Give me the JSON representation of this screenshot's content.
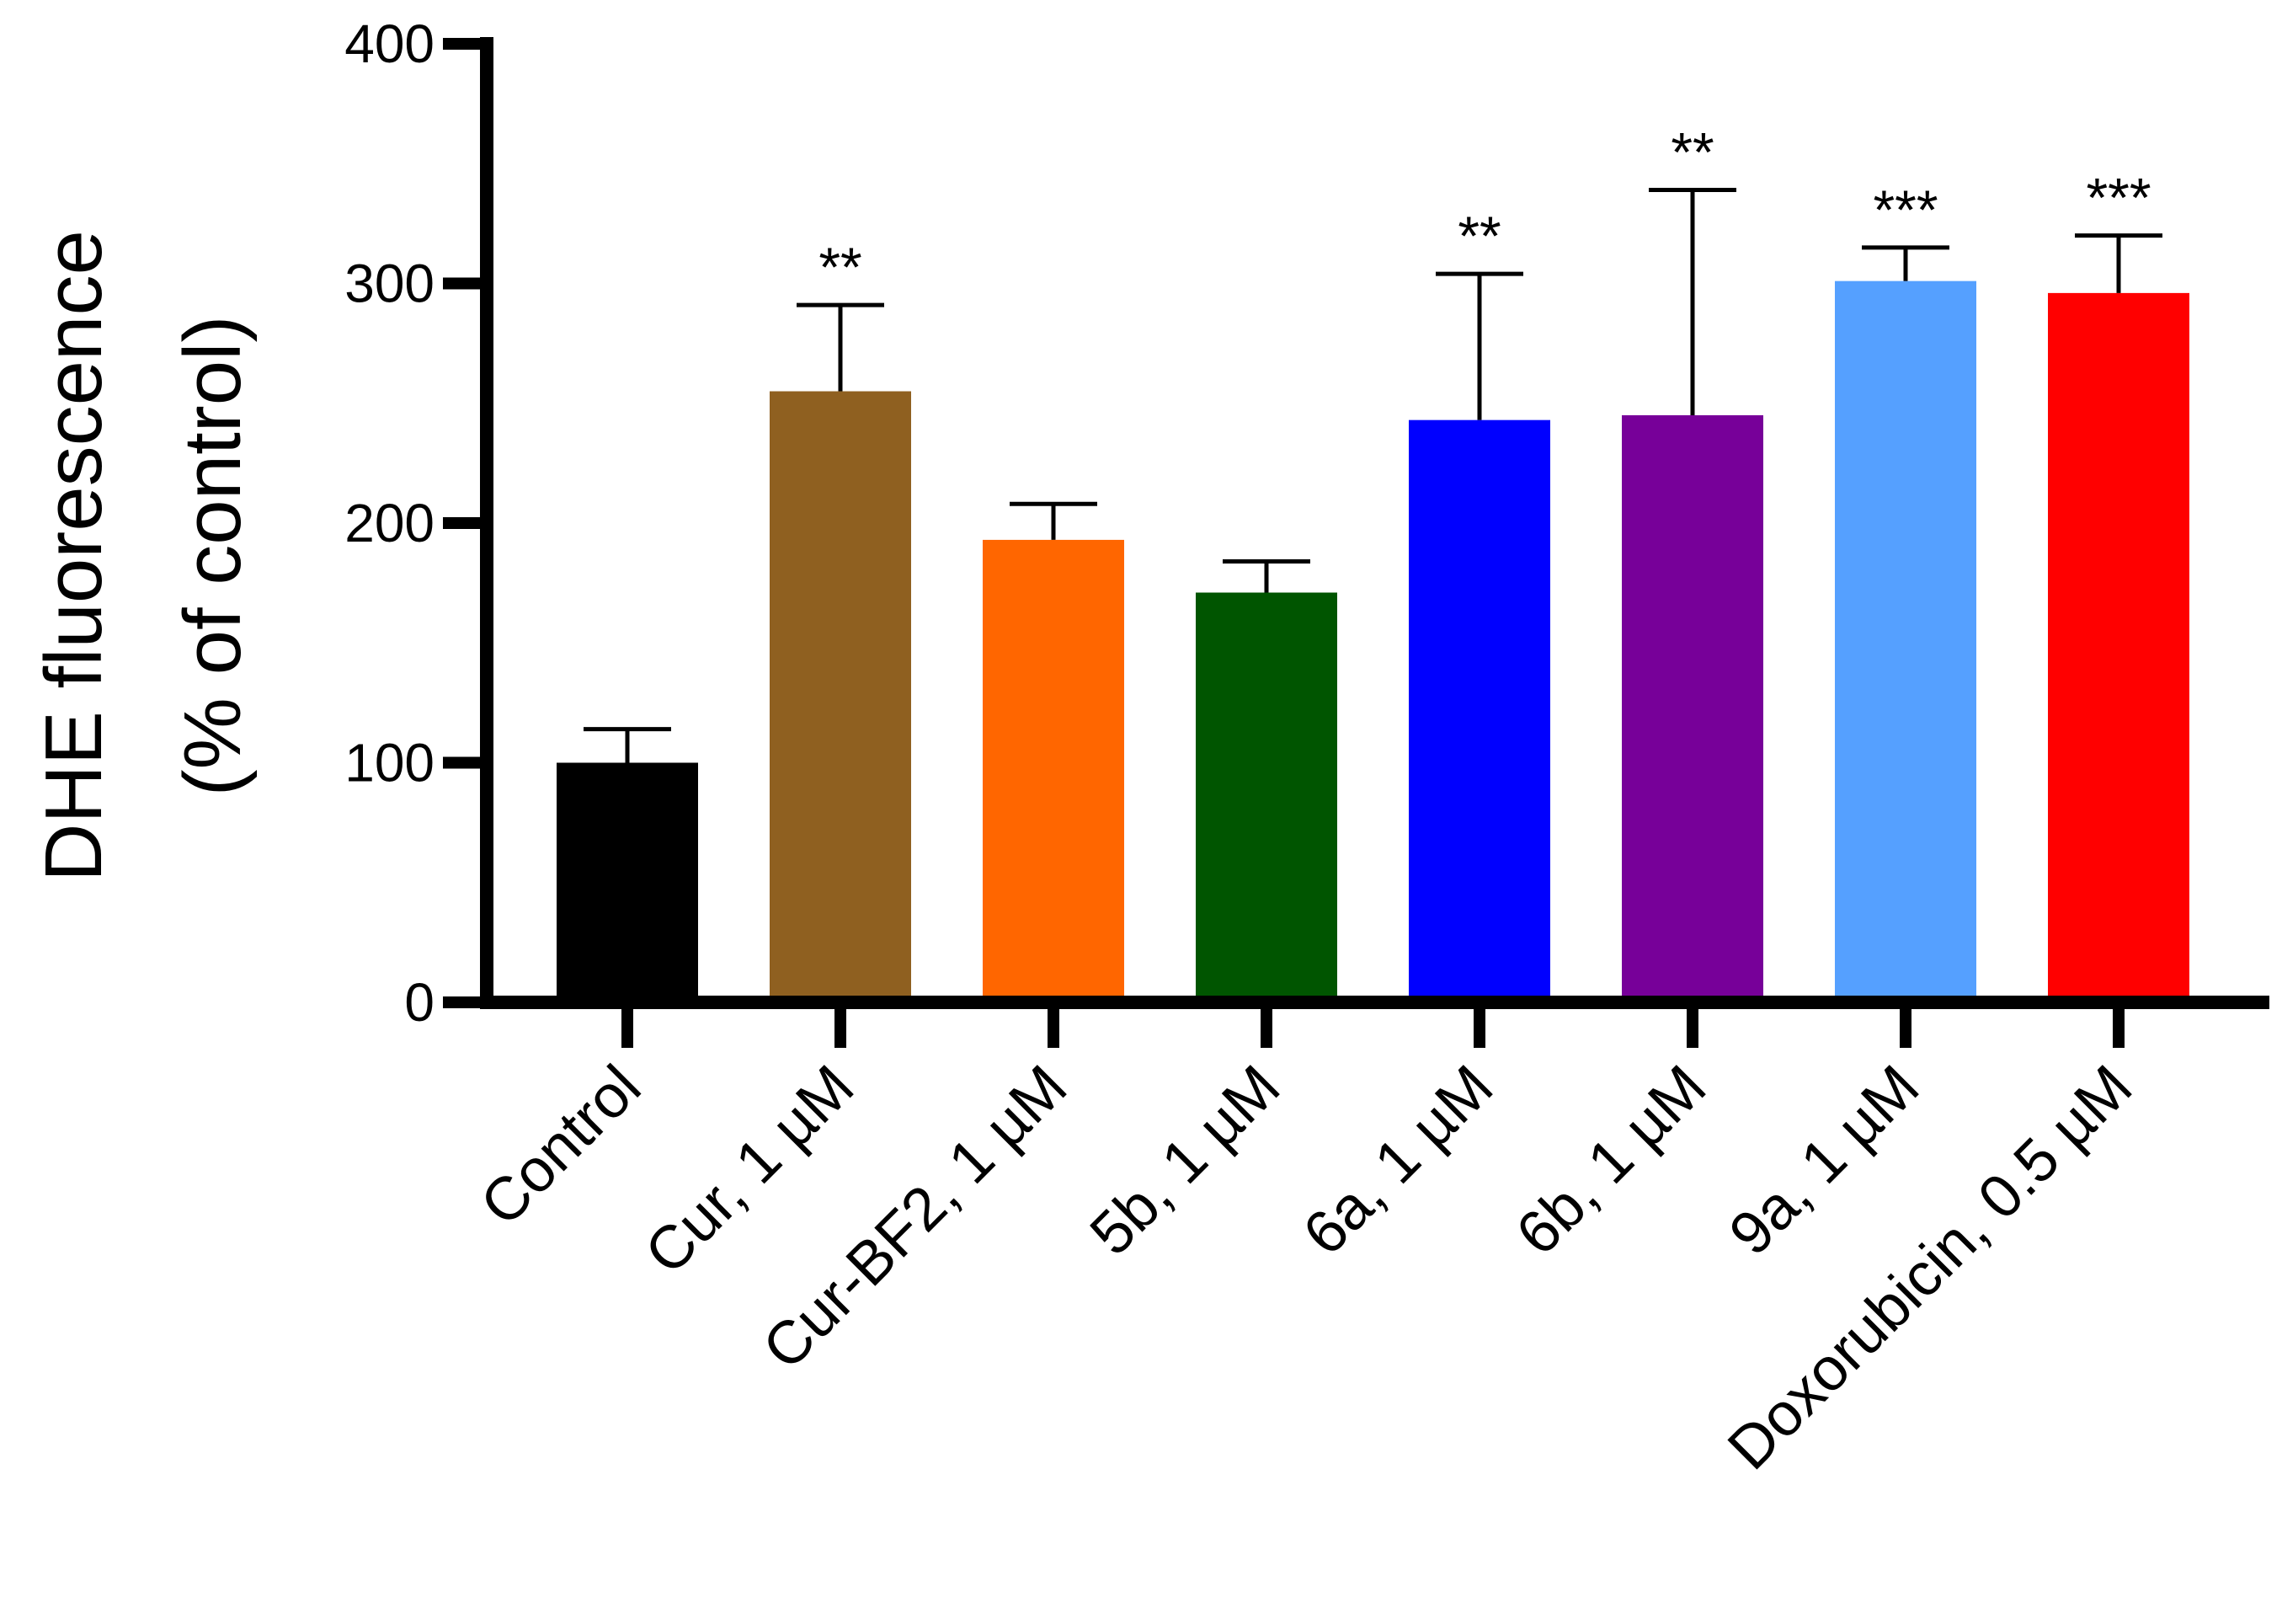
{
  "chart_data": {
    "type": "bar",
    "title": "",
    "xlabel": "",
    "ylabel_line1": "DHE fluorescence",
    "ylabel_line2": "(% of control)",
    "ylim": [
      0,
      400
    ],
    "yticks": [
      "0",
      "100",
      "200",
      "300",
      "400"
    ],
    "grid": false,
    "categories": [
      "Control",
      "Cur, 1 µM",
      "Cur-BF2, 1 µM",
      "5b, 1 µM",
      "6a, 1 µM",
      "6b, 1 µM",
      "9a, 1 µM",
      "Doxorubicin, 0.5 µM"
    ],
    "values": [
      100,
      255,
      193,
      171,
      243,
      245,
      301,
      296
    ],
    "error": [
      14,
      36,
      15,
      13,
      61,
      94,
      14,
      24
    ],
    "significance": [
      "",
      "**",
      "",
      "",
      "**",
      "**",
      "***",
      "***"
    ],
    "colors": [
      "#000000",
      "#8F6020",
      "#FF6600",
      "#005500",
      "#0000FF",
      "#770099",
      "#55A0FF",
      "#FF0000"
    ]
  }
}
